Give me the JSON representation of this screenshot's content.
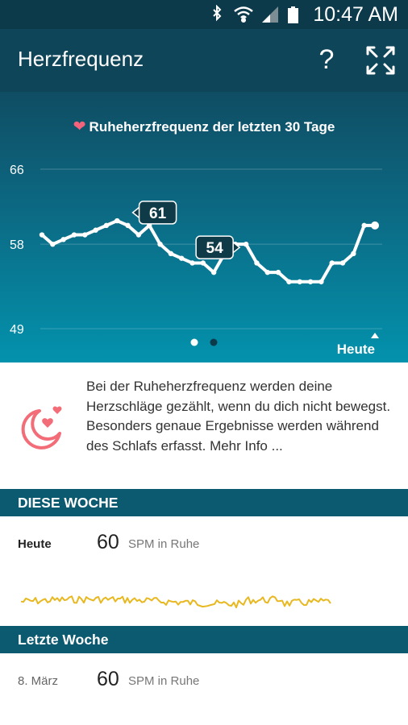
{
  "status_bar": {
    "time": "10:47 AM",
    "icons": [
      "bluetooth-icon",
      "wifi-icon",
      "signal-icon",
      "battery-icon"
    ]
  },
  "header": {
    "title": "Herzfrequenz",
    "help_label": "?",
    "help_icon": "help-icon",
    "fullscreen_icon": "fullscreen-icon"
  },
  "chart_data": {
    "type": "line",
    "title": "Ruheherzfrequenz der letzten 30 Tage",
    "y_ticks": [
      "66",
      "58",
      "49"
    ],
    "ylim": [
      49,
      66
    ],
    "x_end_label": "Heute",
    "annotations": [
      {
        "label": "61",
        "index": 8
      },
      {
        "label": "54",
        "index": 19
      }
    ],
    "values": [
      59,
      58,
      58.5,
      59,
      59,
      59.5,
      60,
      60.5,
      60,
      59,
      60,
      58,
      57,
      56.5,
      56,
      56,
      55,
      57,
      58,
      58,
      56,
      55,
      55,
      54,
      54,
      54,
      54,
      56,
      56,
      57,
      60,
      60
    ],
    "line_color": "#ffffff",
    "page_dots": 2,
    "active_page": 1
  },
  "info": {
    "text": "Bei der Ruheherzfrequenz werden deine Herzschläge gezählt, wenn du dich nicht bewegst. Besonders genaue Ergebnisse werden während des Schlafs erfasst. Mehr Info ...",
    "icon": "sleep-heart-icon"
  },
  "this_week": {
    "header": "DIESE WOCHE",
    "day": "Heute",
    "value": "60",
    "unit": "SPM in Ruhe",
    "sparkline_color": "#e8b820"
  },
  "last_week": {
    "header": "Letzte Woche",
    "day": "8. März",
    "value": "60",
    "unit": "SPM in Ruhe"
  }
}
